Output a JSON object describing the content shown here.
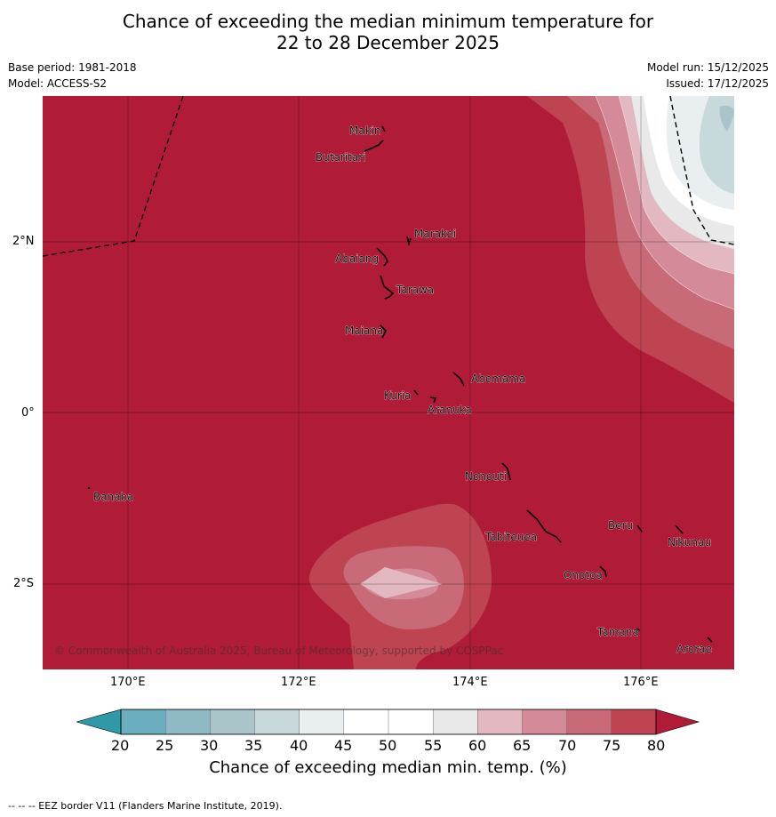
{
  "title": {
    "line1": "Chance of exceeding the median minimum temperature for",
    "line2": "22 to 28 December 2025"
  },
  "meta": {
    "base_period": "Base period: 1981-2018",
    "model": "Model: ACCESS-S2",
    "model_run": "Model run: 15/12/2025",
    "issued": "Issued: 17/12/2025"
  },
  "map": {
    "lat_labels": [
      "2°N",
      "0°",
      "2°S"
    ],
    "lon_labels": [
      "170°E",
      "172°E",
      "174°E",
      "176°E"
    ],
    "places": [
      "Makin",
      "Butaritari",
      "Marakei",
      "Abaiang",
      "Tarawa",
      "Maiana",
      "Abemama",
      "Kuria",
      "Aranuka",
      "Nonouti",
      "Banaba",
      "Tabiteuea",
      "Beru",
      "Nikunau",
      "Onotoa",
      "Tamana",
      "Arorae"
    ],
    "copyright": "© Commonwealth of Australia 2025, Bureau of Meteorology, supported by COSPPac"
  },
  "colorbar": {
    "ticks": [
      "20",
      "25",
      "30",
      "35",
      "40",
      "45",
      "50",
      "55",
      "60",
      "65",
      "70",
      "75",
      "80"
    ],
    "colors": [
      "#2e9aa6",
      "#6aaebf",
      "#8fbac5",
      "#a9c5ca",
      "#c8d9dc",
      "#e9eff1",
      "#ffffff",
      "#ffffff",
      "#e9e9ea",
      "#e3b8c0",
      "#d48a98",
      "#c96a79",
      "#bf4452",
      "#b01c38"
    ],
    "label": "Chance of exceeding median min. temp. (%)"
  },
  "footnote": "--  --  -- EEZ border V11 (Flanders Marine Institute, 2019)."
}
